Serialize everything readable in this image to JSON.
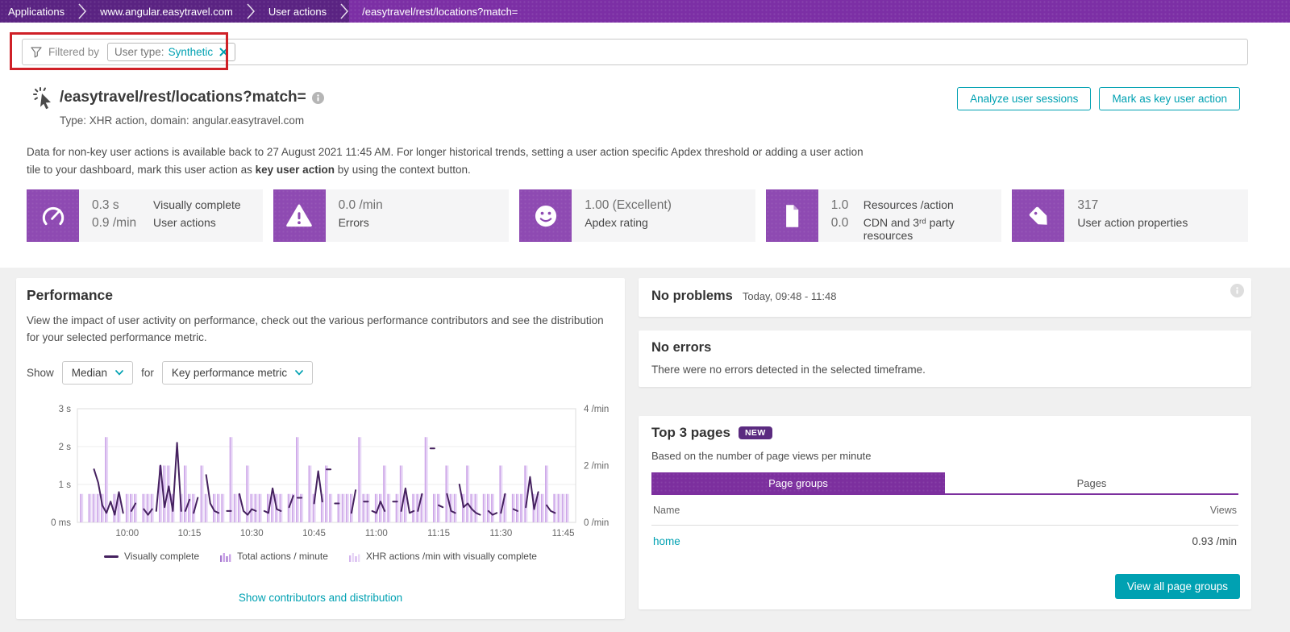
{
  "breadcrumbs": [
    "Applications",
    "www.angular.easytravel.com",
    "User actions",
    "/easytravel/rest/locations?match="
  ],
  "filter": {
    "label": "Filtered by",
    "chip_key": "User type:",
    "chip_value": "Synthetic"
  },
  "header": {
    "title": "/easytravel/rest/locations?match=",
    "subtitle": "Type: XHR action, domain: angular.easytravel.com",
    "btn_analyze": "Analyze user sessions",
    "btn_mark": "Mark as key user action"
  },
  "notice": {
    "before": "Data for non-key user actions is available back to 27 August 2021 11:45 AM. For longer historical trends, setting a user action specific Apdex threshold or adding a user action tile to your dashboard, mark this user action as ",
    "bold": "key user action",
    "after": " by using the context button."
  },
  "tiles": [
    {
      "icon": "gauge-icon",
      "line1_value": "0.3 s",
      "line1_label": "Visually complete",
      "line2_value": "0.9 /min",
      "line2_label": "User actions"
    },
    {
      "icon": "warning-icon",
      "line1_value": "0.0 /min",
      "line1_label": "",
      "line2_value": "",
      "line2_label": "Errors"
    },
    {
      "icon": "smiley-icon",
      "line1_value": "1.00 (Excellent)",
      "line1_label": "",
      "line2_value": "",
      "line2_label": "Apdex rating"
    },
    {
      "icon": "document-icon",
      "line1_value": "1.0",
      "line1_label": "Resources /action",
      "line2_value": "0.0",
      "line2_label": "CDN and 3ʳᵈ party resources"
    },
    {
      "icon": "tag-icon",
      "line1_value": "317",
      "line1_label": "",
      "line2_value": "",
      "line2_label": "User action properties"
    }
  ],
  "performance": {
    "heading": "Performance",
    "description": "View the impact of user activity on performance, check out the various performance contributors and see the distribution for your selected performance metric.",
    "show_label": "Show",
    "for_label": "for",
    "metric_select": "Median",
    "kpi_select": "Key performance metric",
    "contributors_link": "Show contributors and distribution"
  },
  "problems": {
    "heading": "No problems",
    "timeframe": "Today, 09:48 - 11:48"
  },
  "errors": {
    "heading": "No errors",
    "message": "There were no errors detected in the selected timeframe."
  },
  "top_pages": {
    "heading": "Top 3 pages",
    "badge": "NEW",
    "subtitle": "Based on the number of page views per minute",
    "tab_active": "Page groups",
    "tab_inactive": "Pages",
    "col_name": "Name",
    "col_views": "Views",
    "rows": [
      {
        "name": "home",
        "views": "0.93 /min"
      }
    ],
    "button": "View all page groups"
  },
  "chart_data": {
    "type": "line+bar",
    "time_start": "09:48",
    "time_end": "11:48",
    "x_ticks": [
      "10:00",
      "10:15",
      "10:30",
      "10:45",
      "11:00",
      "11:15",
      "11:30",
      "11:45"
    ],
    "x_tick_minutes": [
      12,
      27,
      42,
      57,
      72,
      87,
      102,
      117
    ],
    "left_axis": {
      "labels": [
        "0 ms",
        "1 s",
        "2 s",
        "3 s"
      ],
      "unit": "seconds",
      "range": [
        0,
        3
      ]
    },
    "right_axis": {
      "labels": [
        "0 /min",
        "2 /min",
        "4 /min"
      ],
      "unit": "per minute",
      "range": [
        0,
        4
      ]
    },
    "grid": true,
    "legend_position": "bottom",
    "series": [
      {
        "name": "Visually complete",
        "type": "line",
        "color": "#45215f",
        "unit": "s",
        "segments": [
          [
            [
              4,
              1.4
            ],
            [
              5,
              1.05
            ],
            [
              6,
              0.45
            ],
            [
              7,
              0.25
            ],
            [
              8,
              0.55
            ],
            [
              9,
              0.2
            ],
            [
              10,
              0.8
            ],
            [
              11,
              0.25
            ]
          ],
          [
            [
              13,
              0.3
            ],
            [
              14,
              0.5
            ]
          ],
          [
            [
              16,
              0.35
            ],
            [
              17,
              0.2
            ],
            [
              18,
              0.35
            ]
          ],
          [
            [
              19,
              0.3
            ],
            [
              20,
              1.5
            ],
            [
              21,
              0.4
            ],
            [
              22,
              0.95
            ],
            [
              23,
              0.3
            ],
            [
              24,
              2.1
            ],
            [
              25,
              0.3
            ]
          ],
          [
            [
              26,
              0.3
            ],
            [
              27,
              0.6
            ]
          ],
          [
            [
              28,
              0.25
            ],
            [
              29,
              0.65
            ]
          ],
          [
            [
              31,
              1.25
            ],
            [
              32,
              0.5
            ],
            [
              33,
              0.3
            ],
            [
              34,
              0.25
            ]
          ],
          [
            [
              36,
              0.3
            ],
            [
              37,
              0.3
            ]
          ],
          [
            [
              39,
              0.75
            ],
            [
              40,
              0.3
            ],
            [
              41,
              0.2
            ],
            [
              42,
              0.35
            ],
            [
              43,
              0.3
            ]
          ],
          [
            [
              45,
              0.3
            ],
            [
              46,
              0.25
            ],
            [
              47,
              0.9
            ],
            [
              48,
              0.35
            ],
            [
              49,
              0.3
            ]
          ],
          [
            [
              51,
              0.4
            ],
            [
              52,
              0.7
            ]
          ],
          [
            [
              53,
              0.65
            ],
            [
              54,
              0.65
            ]
          ],
          [
            [
              57,
              0.5
            ],
            [
              58,
              1.35
            ],
            [
              59,
              0.55
            ]
          ],
          [
            [
              60,
              1.4
            ],
            [
              61,
              1.4
            ]
          ],
          [
            [
              62,
              0.5
            ],
            [
              63,
              0.5
            ]
          ],
          [
            [
              66,
              0.25
            ],
            [
              67,
              0.85
            ]
          ],
          [
            [
              69,
              0.55
            ],
            [
              70,
              0.55
            ]
          ],
          [
            [
              71,
              0.3
            ],
            [
              72,
              0.25
            ],
            [
              73,
              0.55
            ],
            [
              74,
              0.3
            ]
          ],
          [
            [
              76,
              0.55
            ],
            [
              77,
              0.55
            ]
          ],
          [
            [
              78,
              0.3
            ],
            [
              79,
              0.9
            ],
            [
              80,
              0.25
            ],
            [
              81,
              0.3
            ]
          ],
          [
            [
              82,
              0.3
            ],
            [
              83,
              0.75
            ]
          ],
          [
            [
              85,
              1.95
            ],
            [
              86,
              1.95
            ]
          ],
          [
            [
              87,
              0.45
            ],
            [
              88,
              0.4
            ]
          ],
          [
            [
              89,
              0.75
            ],
            [
              90,
              0.3
            ],
            [
              91,
              0.25
            ]
          ],
          [
            [
              92,
              1.0
            ],
            [
              93,
              0.4
            ],
            [
              94,
              0.5
            ],
            [
              95,
              0.35
            ],
            [
              96,
              0.25
            ],
            [
              97,
              0.2
            ]
          ],
          [
            [
              99,
              0.3
            ],
            [
              100,
              0.2
            ],
            [
              101,
              0.25
            ]
          ],
          [
            [
              102,
              0.25
            ],
            [
              103,
              0.75
            ]
          ],
          [
            [
              105,
              0.35
            ],
            [
              106,
              0.3
            ]
          ],
          [
            [
              108,
              0.4
            ],
            [
              109,
              1.2
            ],
            [
              110,
              0.35
            ],
            [
              111,
              0.8
            ]
          ],
          [
            [
              113,
              0.45
            ],
            [
              114,
              0.3
            ],
            [
              115,
              0.25
            ]
          ]
        ]
      },
      {
        "name": "Total actions / minute",
        "type": "bar",
        "color": "#cda6e8",
        "unit": "/min",
        "values_by_minute": [
          0,
          1,
          0,
          1,
          1,
          1,
          1,
          3,
          0,
          1,
          1,
          0,
          1,
          1,
          1,
          0,
          1,
          1,
          1,
          0,
          2,
          2,
          2,
          1,
          0,
          1,
          2,
          1,
          1,
          0,
          2,
          1,
          0,
          1,
          1,
          1,
          0,
          3,
          1,
          1,
          0,
          2,
          1,
          1,
          1,
          0,
          1,
          1,
          1,
          1,
          0,
          1,
          1,
          3,
          1,
          0,
          2,
          1,
          0,
          1,
          2,
          1,
          0,
          1,
          1,
          1,
          1,
          0,
          3,
          1,
          1,
          0,
          1,
          1,
          2,
          1,
          0,
          1,
          2,
          1,
          0,
          1,
          1,
          1,
          3,
          0,
          1,
          1,
          0,
          2,
          1,
          1,
          0,
          1,
          2,
          1,
          1,
          0,
          1,
          1,
          1,
          0,
          2,
          1,
          0,
          1,
          1,
          1,
          2,
          0,
          1,
          1,
          1,
          2,
          0,
          1,
          1,
          1,
          1,
          0
        ]
      },
      {
        "name": "XHR actions /min with visually complete",
        "type": "bar",
        "color": "#e6d4f6",
        "unit": "/min",
        "note": "rendered beside total actions; identical values (all actions of this user action are XHR)"
      }
    ]
  },
  "colors": {
    "breadcrumb_bg": "#5a2382",
    "breadcrumb_active": "#7c2fa5",
    "accent_teal": "#00a1b2",
    "tile_icon_purple": "#8e4ab2",
    "tab_purple": "#7c2f9e",
    "badge_purple": "#5b2b80",
    "bar_color": "#cda6e8",
    "bar_color_light": "#e6d4f6",
    "line_color": "#45215f",
    "annotation_red": "#cf2027"
  }
}
